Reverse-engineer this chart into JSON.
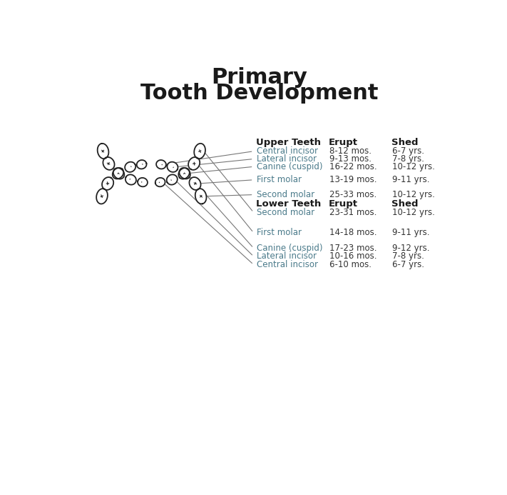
{
  "title_line1": "Primary",
  "title_line2": "Tooth Development",
  "title_fontsize": 22,
  "bg_color": "#ffffff",
  "text_color": "#1a1a1a",
  "name_color": "#4a7a8a",
  "header_color": "#1a1a1a",
  "value_color": "#333333",
  "upper_header": "Upper Teeth",
  "upper_col2": "Erupt",
  "upper_col3": "Shed",
  "upper_rows": [
    [
      "Central incisor",
      "8-12 mos.",
      "6-7 yrs."
    ],
    [
      "Lateral incisor",
      "9-13 mos.",
      "7-8 yrs."
    ],
    [
      "Canine (cuspid)",
      "16-22 mos.",
      "10-12 yrs."
    ],
    [
      "First molar",
      "13-19 mos.",
      "9-11 yrs."
    ],
    [
      "Second molar",
      "25-33 mos.",
      "10-12 yrs."
    ]
  ],
  "lower_header": "Lower Teeth",
  "lower_col2": "Erupt",
  "lower_col3": "Shed",
  "lower_rows": [
    [
      "Second molar",
      "23-31 mos.",
      "10-12 yrs."
    ],
    [
      "First molar",
      "14-18 mos.",
      "9-11 yrs."
    ],
    [
      "Canine (cuspid)",
      "17-23 mos.",
      "9-12 yrs."
    ],
    [
      "Lateral incisor",
      "10-16 mos.",
      "7-8 yrs."
    ],
    [
      "Central incisor",
      "6-10 mos.",
      "6-7 yrs."
    ]
  ],
  "line_color": "#777777",
  "tooth_color": "#222222",
  "tooth_lw": 1.3
}
